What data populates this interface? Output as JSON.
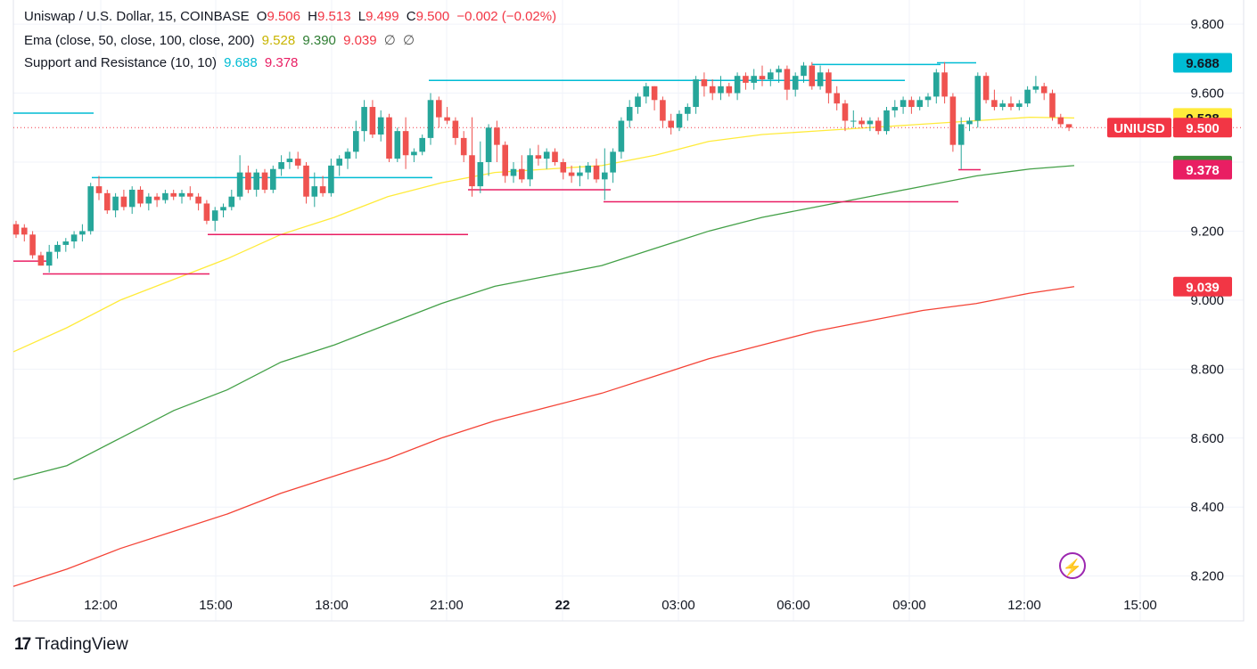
{
  "legend": {
    "line1": {
      "symbol": "Uniswap / U.S. Dollar, 15, COINBASE",
      "o_label": "O",
      "o_value": "9.506",
      "h_label": "H",
      "h_value": "9.513",
      "l_label": "L",
      "l_value": "9.499",
      "c_label": "C",
      "c_value": "9.500",
      "change": "−0.002 (−0.02%)"
    },
    "line2": {
      "name": "Ema (close, 50, close, 100, close, 200)",
      "v1": "9.528",
      "v2": "9.390",
      "v3": "9.039",
      "na1": "∅",
      "na2": "∅"
    },
    "line3": {
      "name": "Support and Resistance (10, 10)",
      "v1": "9.688",
      "v2": "9.378"
    }
  },
  "branding": {
    "logo_text": "TradingView",
    "logo_mark": "17"
  },
  "colors": {
    "up": "#26a69a",
    "down": "#ef5350",
    "ema50": "#ffeb3b",
    "ema100": "#43a047",
    "ema200": "#f44336",
    "resistance": "#00bcd4",
    "support": "#e91e63",
    "price_label": "#f23645"
  },
  "chart_data": {
    "type": "candlestick",
    "symbol": "UNIUSD",
    "timeframe": "15",
    "ylim": [
      8.07,
      9.87
    ],
    "y_ticks": [
      "9.800",
      "9.600",
      "9.200",
      "9.000",
      "8.800",
      "8.600",
      "8.400",
      "8.200"
    ],
    "x_ticks": [
      "12:00",
      "15:00",
      "18:00",
      "21:00",
      "22",
      "03:00",
      "06:00",
      "09:00",
      "12:00",
      "15:00"
    ],
    "price_labels": [
      {
        "text": "9.688",
        "value": 9.688,
        "bg": "#00bcd4",
        "fg": "#131722"
      },
      {
        "text": "9.528",
        "value": 9.528,
        "bg": "#ffeb3b",
        "fg": "#131722"
      },
      {
        "text": "9.500",
        "value": 9.5,
        "bg": "#f23645",
        "fg": "#ffffff",
        "tag": "UNIUSD"
      },
      {
        "text": "9.390",
        "value": 9.39,
        "bg": "#388e3c",
        "fg": "#ffffff"
      },
      {
        "text": "9.378",
        "value": 9.378,
        "bg": "#e91e63",
        "fg": "#ffffff"
      },
      {
        "text": "9.039",
        "value": 9.039,
        "bg": "#f23645",
        "fg": "#ffffff"
      }
    ],
    "candles": [
      [
        9.22,
        9.23,
        9.18,
        9.19
      ],
      [
        9.21,
        9.22,
        9.17,
        9.19
      ],
      [
        9.19,
        9.2,
        9.12,
        9.13
      ],
      [
        9.13,
        9.14,
        9.1,
        9.1
      ],
      [
        9.1,
        9.16,
        9.08,
        9.14
      ],
      [
        9.14,
        9.17,
        9.12,
        9.16
      ],
      [
        9.16,
        9.18,
        9.14,
        9.17
      ],
      [
        9.17,
        9.2,
        9.15,
        9.19
      ],
      [
        9.19,
        9.22,
        9.17,
        9.2
      ],
      [
        9.2,
        9.34,
        9.19,
        9.33
      ],
      [
        9.33,
        9.36,
        9.29,
        9.31
      ],
      [
        9.31,
        9.32,
        9.25,
        9.26
      ],
      [
        9.26,
        9.31,
        9.24,
        9.3
      ],
      [
        9.3,
        9.32,
        9.26,
        9.27
      ],
      [
        9.27,
        9.33,
        9.25,
        9.32
      ],
      [
        9.32,
        9.33,
        9.27,
        9.28
      ],
      [
        9.28,
        9.31,
        9.26,
        9.3
      ],
      [
        9.3,
        9.31,
        9.27,
        9.29
      ],
      [
        9.29,
        9.32,
        9.28,
        9.31
      ],
      [
        9.31,
        9.32,
        9.29,
        9.3
      ],
      [
        9.3,
        9.32,
        9.28,
        9.31
      ],
      [
        9.31,
        9.33,
        9.29,
        9.3
      ],
      [
        9.3,
        9.31,
        9.26,
        9.28
      ],
      [
        9.28,
        9.29,
        9.22,
        9.23
      ],
      [
        9.23,
        9.27,
        9.2,
        9.26
      ],
      [
        9.26,
        9.28,
        9.24,
        9.27
      ],
      [
        9.27,
        9.32,
        9.26,
        9.3
      ],
      [
        9.3,
        9.42,
        9.29,
        9.37
      ],
      [
        9.37,
        9.39,
        9.31,
        9.32
      ],
      [
        9.32,
        9.38,
        9.3,
        9.37
      ],
      [
        9.37,
        9.38,
        9.31,
        9.32
      ],
      [
        9.32,
        9.39,
        9.31,
        9.38
      ],
      [
        9.38,
        9.42,
        9.36,
        9.4
      ],
      [
        9.4,
        9.43,
        9.38,
        9.41
      ],
      [
        9.41,
        9.43,
        9.38,
        9.39
      ],
      [
        9.39,
        9.4,
        9.28,
        9.3
      ],
      [
        9.3,
        9.37,
        9.27,
        9.33
      ],
      [
        9.33,
        9.36,
        9.3,
        9.31
      ],
      [
        9.31,
        9.41,
        9.3,
        9.39
      ],
      [
        9.39,
        9.42,
        9.36,
        9.41
      ],
      [
        9.41,
        9.44,
        9.38,
        9.43
      ],
      [
        9.43,
        9.52,
        9.41,
        9.49
      ],
      [
        9.49,
        9.58,
        9.46,
        9.56
      ],
      [
        9.56,
        9.58,
        9.47,
        9.48
      ],
      [
        9.48,
        9.55,
        9.46,
        9.53
      ],
      [
        9.53,
        9.54,
        9.4,
        9.41
      ],
      [
        9.41,
        9.5,
        9.4,
        9.49
      ],
      [
        9.49,
        9.53,
        9.38,
        9.42
      ],
      [
        9.42,
        9.44,
        9.4,
        9.43
      ],
      [
        9.43,
        9.48,
        9.42,
        9.47
      ],
      [
        9.47,
        9.6,
        9.45,
        9.58
      ],
      [
        9.58,
        9.59,
        9.5,
        9.53
      ],
      [
        9.53,
        9.56,
        9.51,
        9.52
      ],
      [
        9.52,
        9.53,
        9.45,
        9.47
      ],
      [
        9.47,
        9.49,
        9.4,
        9.42
      ],
      [
        9.42,
        9.53,
        9.3,
        9.33
      ],
      [
        9.33,
        9.46,
        9.31,
        9.4
      ],
      [
        9.4,
        9.51,
        9.36,
        9.5
      ],
      [
        9.5,
        9.52,
        9.4,
        9.45
      ],
      [
        9.45,
        9.46,
        9.34,
        9.36
      ],
      [
        9.36,
        9.4,
        9.34,
        9.38
      ],
      [
        9.38,
        9.42,
        9.34,
        9.35
      ],
      [
        9.35,
        9.44,
        9.33,
        9.42
      ],
      [
        9.42,
        9.45,
        9.39,
        9.41
      ],
      [
        9.41,
        9.44,
        9.38,
        9.43
      ],
      [
        9.43,
        9.44,
        9.39,
        9.4
      ],
      [
        9.4,
        9.41,
        9.35,
        9.37
      ],
      [
        9.37,
        9.39,
        9.34,
        9.36
      ],
      [
        9.36,
        9.39,
        9.33,
        9.37
      ],
      [
        9.37,
        9.4,
        9.35,
        9.39
      ],
      [
        9.39,
        9.41,
        9.34,
        9.35
      ],
      [
        9.35,
        9.44,
        9.29,
        9.37
      ],
      [
        9.37,
        9.44,
        9.34,
        9.43
      ],
      [
        9.43,
        9.53,
        9.41,
        9.52
      ],
      [
        9.52,
        9.58,
        9.5,
        9.56
      ],
      [
        9.56,
        9.6,
        9.54,
        9.59
      ],
      [
        9.59,
        9.63,
        9.57,
        9.62
      ],
      [
        9.62,
        9.62,
        9.55,
        9.58
      ],
      [
        9.58,
        9.59,
        9.5,
        9.52
      ],
      [
        9.52,
        9.54,
        9.48,
        9.5
      ],
      [
        9.5,
        9.55,
        9.49,
        9.54
      ],
      [
        9.54,
        9.57,
        9.52,
        9.56
      ],
      [
        9.56,
        9.65,
        9.54,
        9.64
      ],
      [
        9.64,
        9.66,
        9.59,
        9.62
      ],
      [
        9.62,
        9.64,
        9.58,
        9.6
      ],
      [
        9.6,
        9.65,
        9.58,
        9.62
      ],
      [
        9.62,
        9.63,
        9.59,
        9.6
      ],
      [
        9.6,
        9.66,
        9.58,
        9.65
      ],
      [
        9.65,
        9.66,
        9.61,
        9.63
      ],
      [
        9.63,
        9.67,
        9.61,
        9.65
      ],
      [
        9.65,
        9.68,
        9.62,
        9.64
      ],
      [
        9.64,
        9.67,
        9.62,
        9.66
      ],
      [
        9.66,
        9.68,
        9.63,
        9.67
      ],
      [
        9.67,
        9.68,
        9.58,
        9.61
      ],
      [
        9.61,
        9.66,
        9.59,
        9.65
      ],
      [
        9.65,
        9.69,
        9.63,
        9.68
      ],
      [
        9.68,
        9.69,
        9.61,
        9.62
      ],
      [
        9.62,
        9.68,
        9.61,
        9.66
      ],
      [
        9.66,
        9.67,
        9.57,
        9.6
      ],
      [
        9.6,
        9.62,
        9.55,
        9.57
      ],
      [
        9.57,
        9.58,
        9.49,
        9.52
      ],
      [
        9.52,
        9.55,
        9.5,
        9.52
      ],
      [
        9.52,
        9.53,
        9.5,
        9.51
      ],
      [
        9.51,
        9.53,
        9.49,
        9.52
      ],
      [
        9.52,
        9.53,
        9.48,
        9.49
      ],
      [
        9.49,
        9.56,
        9.48,
        9.55
      ],
      [
        9.55,
        9.58,
        9.53,
        9.56
      ],
      [
        9.56,
        9.59,
        9.54,
        9.58
      ],
      [
        9.58,
        9.59,
        9.54,
        9.56
      ],
      [
        9.56,
        9.59,
        9.55,
        9.58
      ],
      [
        9.58,
        9.6,
        9.56,
        9.59
      ],
      [
        9.59,
        9.67,
        9.57,
        9.66
      ],
      [
        9.66,
        9.69,
        9.57,
        9.59
      ],
      [
        9.59,
        9.6,
        9.43,
        9.45
      ],
      [
        9.45,
        9.53,
        9.38,
        9.51
      ],
      [
        9.51,
        9.53,
        9.49,
        9.52
      ],
      [
        9.52,
        9.66,
        9.5,
        9.65
      ],
      [
        9.65,
        9.66,
        9.57,
        9.58
      ],
      [
        9.58,
        9.61,
        9.55,
        9.56
      ],
      [
        9.56,
        9.58,
        9.55,
        9.57
      ],
      [
        9.57,
        9.59,
        9.55,
        9.56
      ],
      [
        9.56,
        9.58,
        9.55,
        9.57
      ],
      [
        9.57,
        9.62,
        9.56,
        9.61
      ],
      [
        9.61,
        9.65,
        9.6,
        9.62
      ],
      [
        9.62,
        9.63,
        9.58,
        9.6
      ],
      [
        9.6,
        9.61,
        9.52,
        9.53
      ],
      [
        9.53,
        9.54,
        9.5,
        9.51
      ],
      [
        9.51,
        9.51,
        9.49,
        9.5
      ]
    ],
    "ema50": [
      [
        0,
        8.85
      ],
      [
        60,
        8.92
      ],
      [
        120,
        9.0
      ],
      [
        180,
        9.06
      ],
      [
        240,
        9.12
      ],
      [
        300,
        9.19
      ],
      [
        360,
        9.24
      ],
      [
        420,
        9.3
      ],
      [
        480,
        9.34
      ],
      [
        540,
        9.37
      ],
      [
        600,
        9.38
      ],
      [
        660,
        9.39
      ],
      [
        720,
        9.42
      ],
      [
        780,
        9.46
      ],
      [
        840,
        9.48
      ],
      [
        900,
        9.49
      ],
      [
        960,
        9.5
      ],
      [
        1020,
        9.51
      ],
      [
        1080,
        9.52
      ],
      [
        1140,
        9.53
      ],
      [
        1190,
        9.528
      ]
    ],
    "ema100": [
      [
        0,
        8.48
      ],
      [
        60,
        8.52
      ],
      [
        120,
        8.6
      ],
      [
        180,
        8.68
      ],
      [
        240,
        8.74
      ],
      [
        300,
        8.82
      ],
      [
        360,
        8.87
      ],
      [
        420,
        8.93
      ],
      [
        480,
        8.99
      ],
      [
        540,
        9.04
      ],
      [
        600,
        9.07
      ],
      [
        660,
        9.1
      ],
      [
        720,
        9.15
      ],
      [
        780,
        9.2
      ],
      [
        840,
        9.24
      ],
      [
        900,
        9.27
      ],
      [
        960,
        9.3
      ],
      [
        1020,
        9.33
      ],
      [
        1080,
        9.36
      ],
      [
        1140,
        9.38
      ],
      [
        1190,
        9.39
      ]
    ],
    "ema200": [
      [
        0,
        8.17
      ],
      [
        60,
        8.22
      ],
      [
        120,
        8.28
      ],
      [
        180,
        8.33
      ],
      [
        240,
        8.38
      ],
      [
        300,
        8.44
      ],
      [
        360,
        8.49
      ],
      [
        420,
        8.54
      ],
      [
        480,
        8.6
      ],
      [
        540,
        8.65
      ],
      [
        600,
        8.69
      ],
      [
        660,
        8.73
      ],
      [
        720,
        8.78
      ],
      [
        780,
        8.83
      ],
      [
        840,
        8.87
      ],
      [
        900,
        8.91
      ],
      [
        960,
        8.94
      ],
      [
        1020,
        8.97
      ],
      [
        1080,
        8.99
      ],
      [
        1140,
        9.02
      ],
      [
        1190,
        9.039
      ]
    ],
    "resistance_lines": [
      [
        0,
        90,
        9.542
      ],
      [
        88,
        470,
        9.355
      ],
      [
        466,
        1000,
        9.637
      ],
      [
        896,
        1040,
        9.683
      ],
      [
        1036,
        1080,
        9.688
      ]
    ],
    "support_lines": [
      [
        0,
        40,
        9.113
      ],
      [
        33,
        220,
        9.076
      ],
      [
        218,
        510,
        9.19
      ],
      [
        510,
        670,
        9.32
      ],
      [
        662,
        1060,
        9.285
      ],
      [
        1060,
        1085,
        9.378
      ]
    ]
  }
}
